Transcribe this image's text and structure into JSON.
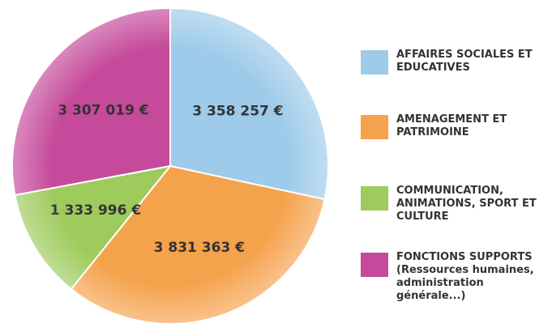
{
  "chart_data": {
    "type": "pie",
    "categories": [
      "AFFAIRES SOCIALES ET EDUCATIVES",
      "AMENAGEMENT ET PATRIMOINE",
      "COMMUNICATION, ANIMATIONS, SPORT ET CULTURE",
      "FONCTIONS SUPPORTS (Ressources humaines, administration générale...)"
    ],
    "values": [
      3358257,
      3831363,
      1333996,
      3307019
    ],
    "value_labels": [
      "3 358 257 €",
      "3 831 363 €",
      "1 333 996 €",
      "3 307 019 €"
    ],
    "colors": [
      "#9ecbea",
      "#f5a24c",
      "#9dcb5c",
      "#c54a9b"
    ],
    "legend": "right"
  }
}
